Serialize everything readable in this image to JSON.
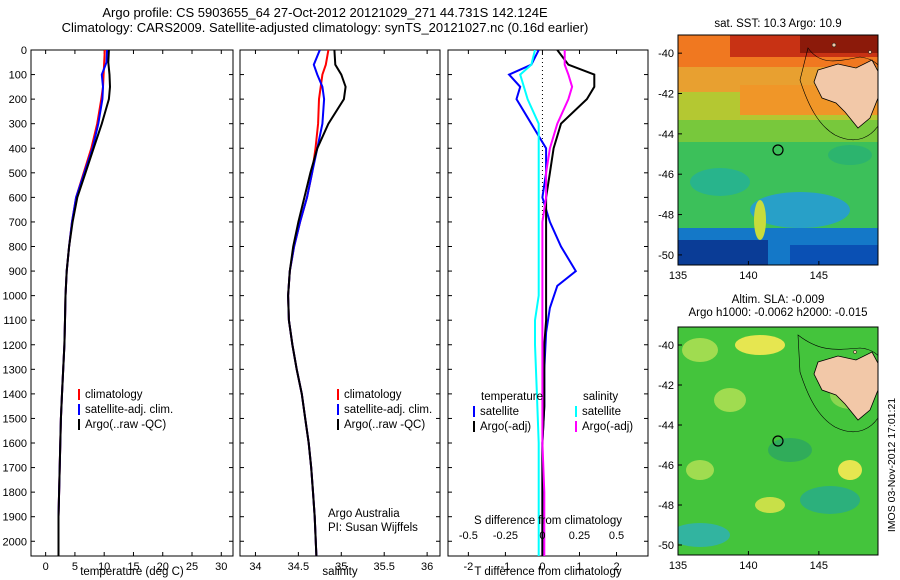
{
  "header": {
    "line1": "Argo profile: CS 5903655_64 27-Oct-2012 20121029_271 44.731S 142.124E",
    "line2": "Climatology: CARS2009. Satellite-adjusted climatology: synTS_20121027.nc (0.16d earlier)"
  },
  "colors": {
    "red": "#ff0000",
    "blue": "#0000ff",
    "black": "#000000",
    "cyan": "#00ffff",
    "magenta": "#ff00ff"
  },
  "chart_data": [
    {
      "type": "line",
      "xlabel": "temperature (deg C)",
      "xticks": [
        "0",
        "5",
        "10",
        "15",
        "20",
        "25",
        "30"
      ],
      "xlim": [
        -2.5,
        32
      ],
      "yticks": [
        "0",
        "100",
        "200",
        "300",
        "400",
        "500",
        "600",
        "700",
        "800",
        "900",
        "1000",
        "1100",
        "1200",
        "1300",
        "1400",
        "1500",
        "1600",
        "1700",
        "1800",
        "1900",
        "2000"
      ],
      "ylim": [
        0,
        2060
      ],
      "legend": [
        "climatology",
        "satellite-adj. clim.",
        "Argo(..raw -QC)"
      ],
      "series": [
        {
          "name": "climatology",
          "color": "red",
          "x": [
            10.1,
            10.0,
            9.9,
            9.8,
            9.5,
            8.8,
            7.8,
            6.5,
            5.2,
            4.5,
            4.0,
            3.6,
            3.4,
            3.3,
            3.2,
            3.0,
            2.8,
            2.6,
            2.5,
            2.4,
            2.3,
            2.2,
            2.2
          ],
          "y": [
            0,
            50,
            100,
            150,
            200,
            300,
            400,
            500,
            600,
            700,
            800,
            900,
            1000,
            1100,
            1200,
            1300,
            1400,
            1500,
            1600,
            1700,
            1800,
            1900,
            2060
          ]
        },
        {
          "name": "satellite-adj. clim.",
          "color": "blue",
          "x": [
            10.5,
            10.4,
            9.6,
            9.8,
            9.7,
            9.0,
            8.0,
            6.6,
            5.2,
            4.5,
            4.0,
            3.6,
            3.4,
            3.3,
            3.2,
            3.0,
            2.8,
            2.6,
            2.5,
            2.4,
            2.3,
            2.2,
            2.2
          ],
          "y": [
            0,
            50,
            100,
            150,
            200,
            300,
            400,
            500,
            600,
            700,
            800,
            900,
            1000,
            1100,
            1200,
            1300,
            1400,
            1500,
            1600,
            1700,
            1800,
            1900,
            2060
          ]
        },
        {
          "name": "Argo(..raw -QC)",
          "color": "black",
          "x": [
            10.8,
            10.7,
            10.9,
            11.0,
            10.8,
            9.6,
            8.2,
            6.8,
            5.4,
            4.6,
            4.0,
            3.6,
            3.4,
            3.3,
            3.2,
            3.0,
            2.8,
            2.6,
            2.5,
            2.4,
            2.3,
            2.2,
            2.2
          ],
          "y": [
            0,
            50,
            100,
            150,
            200,
            300,
            400,
            500,
            600,
            700,
            800,
            900,
            1000,
            1100,
            1200,
            1300,
            1400,
            1500,
            1600,
            1700,
            1800,
            1900,
            2060
          ]
        }
      ]
    },
    {
      "type": "line",
      "xlabel": "salinity",
      "xticks": [
        "34",
        "34.5",
        "35",
        "35.5",
        "36"
      ],
      "xlim": [
        33.82,
        36.15
      ],
      "ylim": [
        0,
        2060
      ],
      "legend": [
        "climatology",
        "satellite-adj. clim.",
        "Argo(..raw -QC)"
      ],
      "annotation": [
        "Argo Australia",
        "PI: Susan Wijffels"
      ],
      "series": [
        {
          "name": "climatology",
          "color": "red",
          "x": [
            34.85,
            34.82,
            34.78,
            34.76,
            34.74,
            34.73,
            34.7,
            34.66,
            34.6,
            34.52,
            34.45,
            34.4,
            34.38,
            34.39,
            34.43,
            34.48,
            34.54,
            34.58,
            34.62,
            34.65,
            34.67,
            34.69,
            34.71
          ],
          "y": [
            0,
            60,
            100,
            150,
            200,
            300,
            400,
            500,
            600,
            700,
            800,
            900,
            1000,
            1100,
            1200,
            1300,
            1400,
            1500,
            1600,
            1700,
            1800,
            1900,
            2060
          ]
        },
        {
          "name": "satellite-adj. clim.",
          "color": "blue",
          "x": [
            34.75,
            34.68,
            34.72,
            34.78,
            34.8,
            34.78,
            34.72,
            34.66,
            34.6,
            34.52,
            34.45,
            34.4,
            34.38,
            34.39,
            34.43,
            34.48,
            34.54,
            34.58,
            34.62,
            34.65,
            34.67,
            34.69,
            34.71
          ],
          "y": [
            0,
            60,
            100,
            150,
            200,
            300,
            400,
            500,
            600,
            700,
            800,
            900,
            1000,
            1100,
            1200,
            1300,
            1400,
            1500,
            1600,
            1700,
            1800,
            1900,
            2060
          ]
        },
        {
          "name": "Argo(..raw -QC)",
          "color": "black",
          "x": [
            34.92,
            34.93,
            35.0,
            35.05,
            35.03,
            34.85,
            34.72,
            34.64,
            34.57,
            34.5,
            34.44,
            34.4,
            34.38,
            34.39,
            34.43,
            34.48,
            34.54,
            34.58,
            34.62,
            34.65,
            34.67,
            34.69,
            34.71
          ],
          "y": [
            0,
            60,
            100,
            150,
            200,
            300,
            400,
            500,
            600,
            700,
            800,
            900,
            1000,
            1100,
            1200,
            1300,
            1400,
            1500,
            1600,
            1700,
            1800,
            1900,
            2060
          ]
        }
      ]
    },
    {
      "type": "line",
      "xlabel": "T difference from climatology",
      "xticks": [
        "-2",
        "-1",
        "0",
        "1",
        "2"
      ],
      "xlim": [
        -2.55,
        2.85
      ],
      "top_axis_label": "S difference from climatology",
      "top_ticks": [
        "-0.5",
        "-0.25",
        "0",
        "0.25",
        "0.5"
      ],
      "ylim": [
        0,
        2060
      ],
      "legend_temperature": [
        "temperature",
        "satellite",
        "Argo(-adj)"
      ],
      "legend_salinity": [
        "salinity",
        "satellite",
        "Argo(-adj)"
      ],
      "series": [
        {
          "name": "satellite",
          "color": "blue",
          "x": [
            -0.1,
            -0.3,
            -0.9,
            -0.6,
            -0.7,
            -0.3,
            0.1,
            0.1,
            0.0,
            0.2,
            0.5,
            0.9,
            0.4,
            0.2,
            0.1,
            0.05,
            0.05,
            0.0,
            0.0,
            0.0,
            0.0,
            0.0
          ],
          "y": [
            0,
            60,
            100,
            150,
            200,
            300,
            400,
            500,
            600,
            700,
            800,
            900,
            960,
            1050,
            1150,
            1300,
            1450,
            1600,
            1750,
            1900,
            2000,
            2060
          ]
        },
        {
          "name": "Argo(-adj)",
          "color": "black",
          "x": [
            0.4,
            0.7,
            1.4,
            1.4,
            1.2,
            0.5,
            0.3,
            0.2,
            0.1,
            0.1,
            0.1,
            0.1,
            0.1,
            0.1,
            0.05,
            0.05,
            0.05,
            0.0,
            0.0,
            0.0,
            0.0
          ],
          "y": [
            0,
            60,
            100,
            150,
            200,
            300,
            400,
            500,
            600,
            700,
            800,
            900,
            1000,
            1100,
            1200,
            1300,
            1450,
            1600,
            1800,
            2000,
            2060
          ]
        },
        {
          "name": "satellite",
          "color": "cyan",
          "x": [
            -0.2,
            -0.3,
            -0.6,
            -0.5,
            -0.4,
            -0.1,
            -0.1,
            -0.1,
            -0.1,
            -0.1,
            -0.1,
            -0.1,
            -0.1,
            -0.2,
            -0.2,
            -0.15,
            -0.1,
            -0.1,
            -0.1,
            -0.1
          ],
          "y": [
            0,
            60,
            100,
            150,
            200,
            300,
            400,
            500,
            600,
            700,
            800,
            900,
            1000,
            1100,
            1200,
            1400,
            1600,
            1800,
            2000,
            2060
          ]
        },
        {
          "name": "Argo(-adj)",
          "color": "magenta",
          "x": [
            0.6,
            0.6,
            0.7,
            0.8,
            0.7,
            0.4,
            0.2,
            0.1,
            0.1,
            0.0,
            0.0,
            0.0,
            0.0,
            0.0,
            0.0,
            0.0,
            0.05,
            0.05,
            0.05
          ],
          "y": [
            0,
            60,
            100,
            150,
            200,
            300,
            400,
            500,
            600,
            700,
            800,
            900,
            1000,
            1200,
            1400,
            1600,
            1800,
            2000,
            2060
          ]
        }
      ]
    }
  ],
  "maps": {
    "top": {
      "title": "sat. SST: 10.3 Argo: 10.9",
      "yticks": [
        "-40",
        "-42",
        "-44",
        "-46",
        "-48",
        "-50"
      ],
      "xticks": [
        "135",
        "140",
        "145"
      ]
    },
    "bottom": {
      "title_line1": "Altim. SLA: -0.009",
      "title_line2": "Argo h1000: -0.0062 h2000: -0.015",
      "yticks": [
        "-40",
        "-42",
        "-44",
        "-46",
        "-48",
        "-50"
      ],
      "xticks": [
        "135",
        "140",
        "145"
      ]
    },
    "credit": "IMOS 03-Nov-2012 17:01:21"
  }
}
